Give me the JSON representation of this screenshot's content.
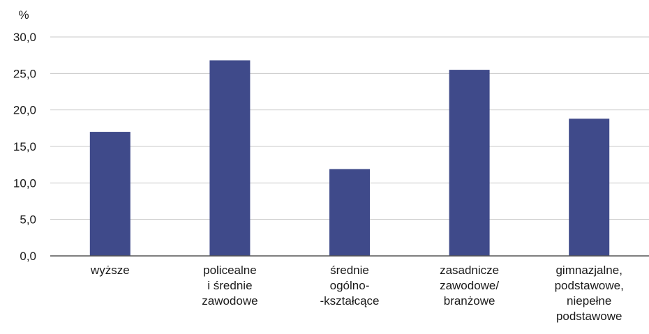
{
  "chart_data": {
    "type": "bar",
    "unit_label": "%",
    "categories": [
      [
        "wyższe"
      ],
      [
        "policealne",
        "i średnie",
        "zawodowe"
      ],
      [
        "średnie",
        "ogólno-",
        "-kształcące"
      ],
      [
        "zasadnicze",
        "zawodowe/",
        "branżowe"
      ],
      [
        "gimnazjalne,",
        "podstawowe,",
        "niepełne",
        "podstawowe"
      ]
    ],
    "values": [
      17.0,
      26.8,
      11.9,
      25.5,
      18.8
    ],
    "ylim": [
      0,
      30
    ],
    "yticks": [
      0,
      5,
      10,
      15,
      20,
      25,
      30
    ],
    "ytick_labels": [
      "0,0",
      "5,0",
      "10,0",
      "15,0",
      "20,0",
      "25,0",
      "30,0"
    ],
    "grid": true,
    "bar_color": "#3f4a8a",
    "grid_color": "#c8c8c8",
    "axis_color": "#555555"
  }
}
